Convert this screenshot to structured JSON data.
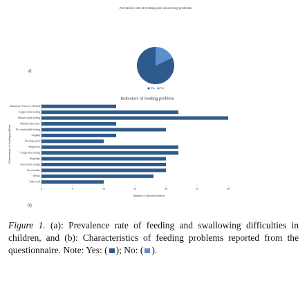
{
  "charts": [
    {
      "type": "pie",
      "label": "a)",
      "title": "Prevalence rate of feeding and swallowing problems",
      "categories": [
        "Yes",
        "No"
      ],
      "values": [
        82,
        18
      ],
      "colors": [
        "#2f5a8c",
        "#5b8fd0"
      ]
    },
    {
      "type": "barh",
      "label": "b)",
      "title": "Indicators of feeding problem",
      "x_label": "Number of affected children",
      "y_label": "Characteristics of feeding problems",
      "categories": [
        "Duration (>5 min or >30 min)",
        "Coughs while feeding",
        "Refuses while feeding",
        "Multiple bites/chew",
        "Not comfortable feeding",
        "Gagging",
        "Drooling saliva",
        "Weight loss",
        "Cough after feeding",
        "Dysphagia",
        "Uses texture change",
        "Food residue",
        "Reflux",
        "Takes food"
      ],
      "values": [
        12,
        22,
        30,
        12,
        20,
        12,
        10,
        22,
        22,
        20,
        20,
        20,
        18,
        10
      ],
      "color": "#2f5a8c",
      "xlim": [
        0,
        30
      ],
      "xticks": [
        0,
        5,
        10,
        15,
        20,
        25,
        30
      ]
    }
  ],
  "caption": {
    "figure": "Figure 1.",
    "text": "(a): Prevalence rate of feeding and swallowing difficulties in children, and (b): Characteristics of feeding problems reported from the questionnaire. Note:",
    "yes": "Yes:",
    "no": "No:"
  }
}
